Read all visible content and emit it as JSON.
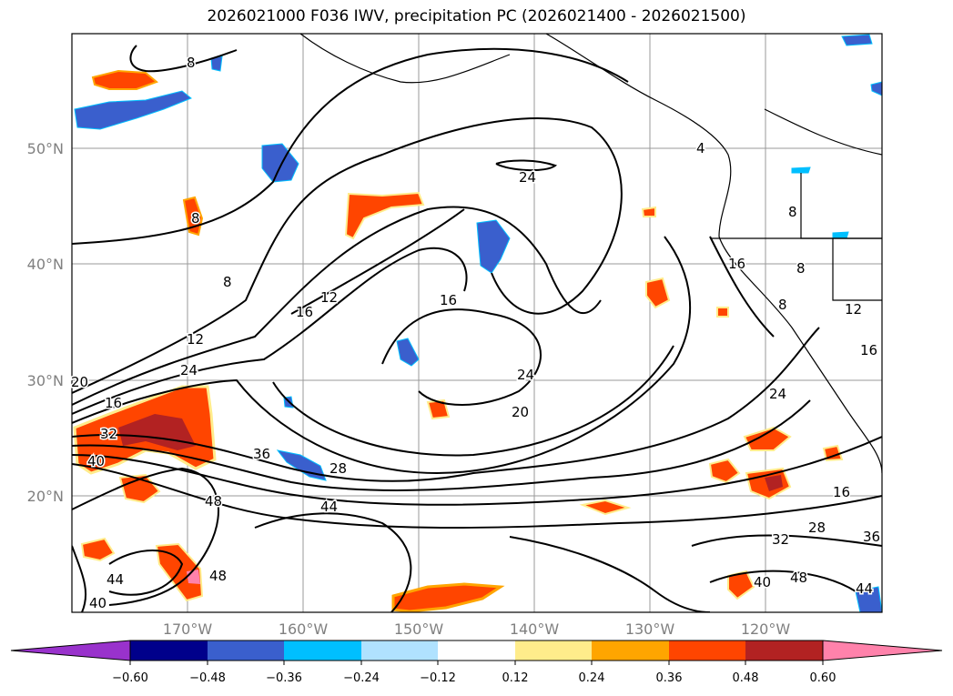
{
  "title": "2026021000 F036 IWV, precipitation PC (2026021400 - 2026021500)",
  "map": {
    "lat_ticks": [
      "50°N",
      "40°N",
      "30°N",
      "20°N"
    ],
    "lon_ticks": [
      "170°W",
      "160°W",
      "150°W",
      "140°W",
      "130°W",
      "120°W"
    ],
    "grid": true
  },
  "contour_labels": [
    "8",
    "8",
    "8",
    "8",
    "12",
    "12",
    "16",
    "16",
    "16",
    "20",
    "24",
    "24",
    "24",
    "28",
    "36",
    "40",
    "44",
    "48",
    "48",
    "32",
    "40",
    "44",
    "24",
    "16",
    "28",
    "32",
    "36",
    "40",
    "48",
    "44",
    "20",
    "8",
    "16",
    "8",
    "12",
    "16",
    "4"
  ],
  "colorbar": {
    "ticks": [
      "−0.60",
      "−0.48",
      "−0.36",
      "−0.24",
      "−0.12",
      "0.12",
      "0.24",
      "0.36",
      "0.48",
      "0.60"
    ],
    "colors": [
      "#9932cc",
      "#00008b",
      "#3a5fcd",
      "#00bfff",
      "#b0e2ff",
      "#ffffff",
      "#ffec8b",
      "#ffa500",
      "#ff4500",
      "#b22222",
      "#ff82ab"
    ]
  }
}
